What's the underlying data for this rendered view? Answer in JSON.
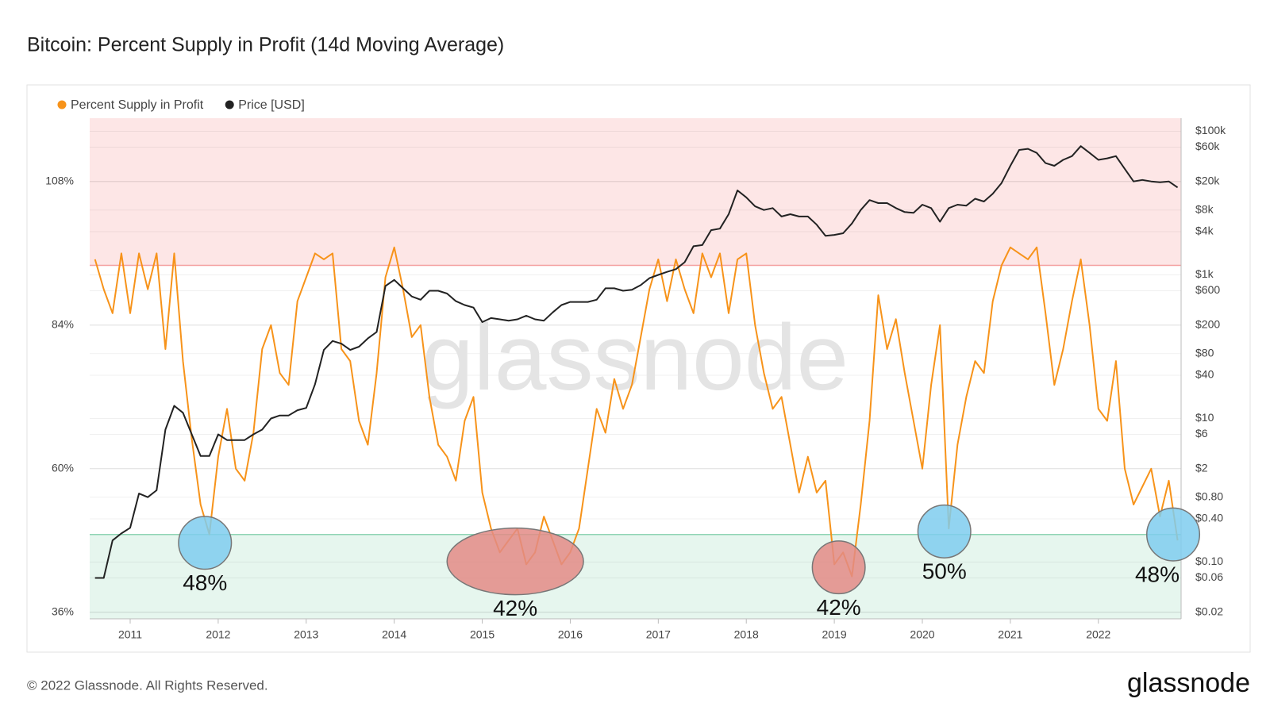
{
  "chart_data": {
    "type": "line",
    "title": "Bitcoin: Percent Supply in Profit (14d Moving Average)",
    "watermark": "glassnode",
    "footer": "© 2022 Glassnode. All Rights Reserved.",
    "logo": "glassnode",
    "x": [
      2010.6,
      2010.7,
      2010.8,
      2010.9,
      2011.0,
      2011.1,
      2011.2,
      2011.3,
      2011.4,
      2011.5,
      2011.6,
      2011.7,
      2011.8,
      2011.9,
      2012.0,
      2012.1,
      2012.2,
      2012.3,
      2012.4,
      2012.5,
      2012.6,
      2012.7,
      2012.8,
      2012.9,
      2013.0,
      2013.1,
      2013.2,
      2013.3,
      2013.4,
      2013.5,
      2013.6,
      2013.7,
      2013.8,
      2013.9,
      2014.0,
      2014.1,
      2014.2,
      2014.3,
      2014.4,
      2014.5,
      2014.6,
      2014.7,
      2014.8,
      2014.9,
      2015.0,
      2015.1,
      2015.2,
      2015.3,
      2015.4,
      2015.5,
      2015.6,
      2015.7,
      2015.8,
      2015.9,
      2016.0,
      2016.1,
      2016.2,
      2016.3,
      2016.4,
      2016.5,
      2016.6,
      2016.7,
      2016.8,
      2016.9,
      2017.0,
      2017.1,
      2017.2,
      2017.3,
      2017.4,
      2017.5,
      2017.6,
      2017.7,
      2017.8,
      2017.9,
      2018.0,
      2018.1,
      2018.2,
      2018.3,
      2018.4,
      2018.5,
      2018.6,
      2018.7,
      2018.8,
      2018.9,
      2019.0,
      2019.1,
      2019.2,
      2019.3,
      2019.4,
      2019.5,
      2019.6,
      2019.7,
      2019.8,
      2019.9,
      2020.0,
      2020.1,
      2020.2,
      2020.3,
      2020.4,
      2020.5,
      2020.6,
      2020.7,
      2020.8,
      2020.9,
      2021.0,
      2021.1,
      2021.2,
      2021.3,
      2021.4,
      2021.5,
      2021.6,
      2021.7,
      2021.8,
      2021.9,
      2022.0,
      2022.1,
      2022.2,
      2022.3,
      2022.4,
      2022.5,
      2022.6,
      2022.7,
      2022.8,
      2022.9
    ],
    "series": [
      {
        "name": "Percent Supply in Profit",
        "color": "#f7931a",
        "axis": "y",
        "values": [
          95,
          90,
          86,
          96,
          86,
          96,
          90,
          96,
          80,
          96,
          78,
          65,
          54,
          49,
          62,
          70,
          60,
          58,
          66,
          80,
          84,
          76,
          74,
          88,
          92,
          96,
          95,
          96,
          80,
          78,
          68,
          64,
          76,
          92,
          97,
          90,
          82,
          84,
          72,
          64,
          62,
          58,
          68,
          72,
          56,
          50,
          46,
          48,
          50,
          44,
          46,
          52,
          48,
          44,
          46,
          50,
          60,
          70,
          66,
          75,
          70,
          74,
          82,
          90,
          95,
          88,
          95,
          90,
          86,
          96,
          92,
          96,
          86,
          95,
          96,
          84,
          76,
          70,
          72,
          64,
          56,
          62,
          56,
          58,
          44,
          46,
          42,
          54,
          68,
          89,
          80,
          85,
          76,
          68,
          60,
          74,
          84,
          50,
          64,
          72,
          78,
          76,
          88,
          94,
          97,
          96,
          95,
          97,
          86,
          74,
          80,
          88,
          95,
          84,
          70,
          68,
          78,
          60,
          54,
          57,
          60,
          52,
          58,
          48
        ]
      },
      {
        "name": "Price [USD]",
        "color": "#222222",
        "axis": "y2",
        "values": [
          0.06,
          0.06,
          0.2,
          0.25,
          0.3,
          0.9,
          0.8,
          1,
          7,
          15,
          12,
          6,
          3,
          3,
          6,
          5,
          5,
          5,
          6,
          7,
          10,
          11,
          11,
          13,
          14,
          30,
          90,
          120,
          110,
          90,
          100,
          130,
          160,
          700,
          850,
          650,
          500,
          450,
          600,
          600,
          550,
          430,
          380,
          350,
          220,
          250,
          240,
          230,
          240,
          270,
          240,
          230,
          300,
          380,
          420,
          420,
          420,
          450,
          650,
          650,
          600,
          620,
          720,
          900,
          1000,
          1100,
          1200,
          1500,
          2500,
          2600,
          4200,
          4400,
          7000,
          15000,
          12000,
          9000,
          8000,
          8500,
          6500,
          7000,
          6500,
          6500,
          5000,
          3500,
          3600,
          3800,
          5200,
          8000,
          11000,
          10000,
          10000,
          8500,
          7500,
          7300,
          9500,
          8500,
          5500,
          8500,
          9500,
          9200,
          11500,
          10500,
          13500,
          19000,
          33000,
          55000,
          57000,
          50000,
          36000,
          33000,
          40000,
          45000,
          62000,
          50000,
          40000,
          42000,
          45000,
          30000,
          20000,
          21000,
          20000,
          19500,
          20000,
          16500
        ]
      }
    ],
    "xlim": [
      2010.54,
      2022.94
    ],
    "xticks": [
      2011,
      2012,
      2013,
      2014,
      2015,
      2016,
      2017,
      2018,
      2019,
      2020,
      2021,
      2022
    ],
    "ylim": [
      34.9,
      118.6
    ],
    "yticks": [
      {
        "value": 36,
        "label": "36%"
      },
      {
        "value": 60,
        "label": "60%"
      },
      {
        "value": 84,
        "label": "84%"
      },
      {
        "value": 108,
        "label": "108%"
      }
    ],
    "y2lim": [
      0.0162,
      152000
    ],
    "y2_log_scale": true,
    "y2ticks": [
      {
        "value": 100000,
        "label": "$100k"
      },
      {
        "value": 60000,
        "label": "$60k"
      },
      {
        "value": 20000,
        "label": "$20k"
      },
      {
        "value": 8000,
        "label": "$8k"
      },
      {
        "value": 4000,
        "label": "$4k"
      },
      {
        "value": 1000,
        "label": "$1k"
      },
      {
        "value": 600,
        "label": "$600"
      },
      {
        "value": 200,
        "label": "$200"
      },
      {
        "value": 80,
        "label": "$80"
      },
      {
        "value": 40,
        "label": "$40"
      },
      {
        "value": 10,
        "label": "$10"
      },
      {
        "value": 6,
        "label": "$6"
      },
      {
        "value": 2,
        "label": "$2"
      },
      {
        "value": 0.8,
        "label": "$0.80"
      },
      {
        "value": 0.4,
        "label": "$0.40"
      },
      {
        "value": 0.1,
        "label": "$0.10"
      },
      {
        "value": 0.06,
        "label": "$0.06"
      },
      {
        "value": 0.02,
        "label": "$0.02"
      }
    ],
    "upper_threshold": {
      "value": 94,
      "color": "#f4a0a0",
      "fill": "#fde6e6"
    },
    "lower_threshold": {
      "value": 49,
      "color": "#8fd4b4",
      "fill": "#e6f6ee"
    },
    "grid": true,
    "legend": "top-left",
    "annotations": [
      {
        "label": "48%",
        "x": [
          2011.55,
          2012.15
        ],
        "y": 47.6,
        "color": "#7fcdee"
      },
      {
        "label": "42%",
        "x": [
          2014.6,
          2016.15
        ],
        "y": 44.5,
        "color": "#e38b86"
      },
      {
        "label": "42%",
        "x": [
          2018.75,
          2019.35
        ],
        "y": 43.5,
        "color": "#e38b86"
      },
      {
        "label": "50%",
        "x": [
          2019.95,
          2020.55
        ],
        "y": 49.5,
        "color": "#7fcdee"
      },
      {
        "label": "48%",
        "x": [
          2022.55,
          2023.15
        ],
        "y": 49,
        "color": "#7fcdee"
      }
    ]
  }
}
